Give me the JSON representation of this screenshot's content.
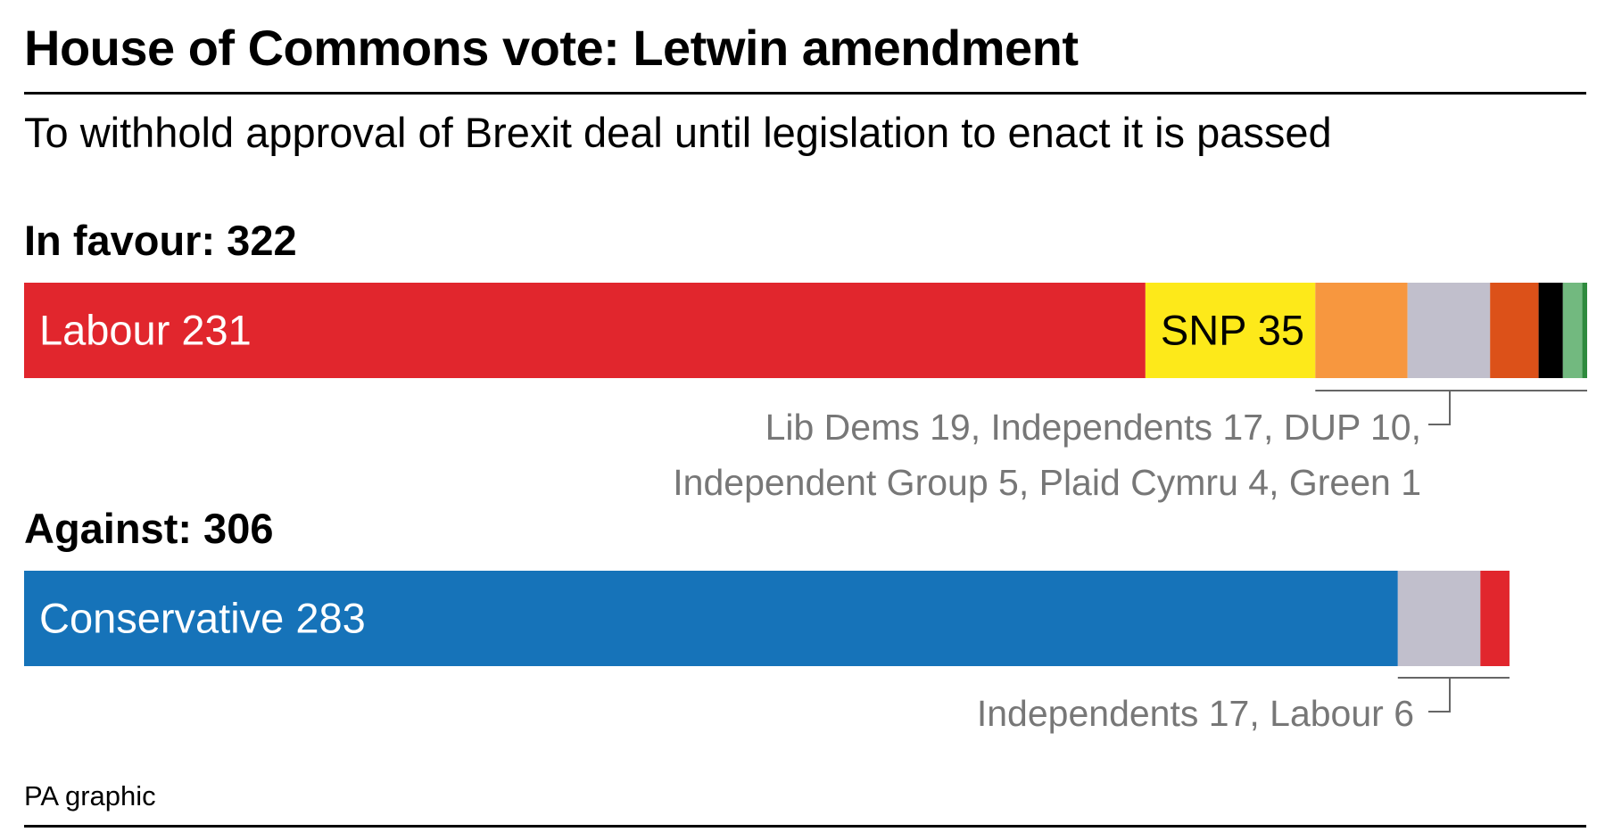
{
  "chart_data": {
    "type": "bar",
    "stacked": true,
    "orientation": "horizontal",
    "title": "House of Commons vote: Letwin amendment",
    "subtitle": "To withhold approval of Brexit deal until legislation to enact it is passed",
    "source": "PA graphic",
    "groups": [
      {
        "id": "favour",
        "label": "In favour: 322",
        "total": 322,
        "segments": [
          {
            "party": "Labour",
            "value": 231,
            "color": "#e1262d",
            "label": "Labour 231",
            "label_color": "#ffffff"
          },
          {
            "party": "SNP",
            "value": 35,
            "color": "#fde91a",
            "label": "SNP 35",
            "label_color": "#000000"
          },
          {
            "party": "Lib Dems",
            "value": 19,
            "color": "#f7973f"
          },
          {
            "party": "Independents",
            "value": 17,
            "color": "#c1bfcc"
          },
          {
            "party": "DUP",
            "value": 10,
            "color": "#dc5119"
          },
          {
            "party": "Independent Group",
            "value": 5,
            "color": "#000000"
          },
          {
            "party": "Plaid Cymru",
            "value": 4,
            "color": "#72b97f"
          },
          {
            "party": "Green",
            "value": 1,
            "color": "#2e8b3d"
          }
        ],
        "note_lines": [
          "Lib Dems 19, Independents 17, DUP 10,",
          "Independent Group 5, Plaid Cymru 4, Green 1"
        ],
        "bracket_from_index": 2
      },
      {
        "id": "against",
        "label": "Against: 306",
        "total": 306,
        "segments": [
          {
            "party": "Conservative",
            "value": 283,
            "color": "#1673b9",
            "label": "Conservative 283",
            "label_color": "#ffffff"
          },
          {
            "party": "Independents",
            "value": 17,
            "color": "#c1bfcc"
          },
          {
            "party": "Labour",
            "value": 6,
            "color": "#e1262d"
          }
        ],
        "note_lines": [
          "Independents 17, Labour 6"
        ],
        "bracket_from_index": 1
      }
    ]
  }
}
